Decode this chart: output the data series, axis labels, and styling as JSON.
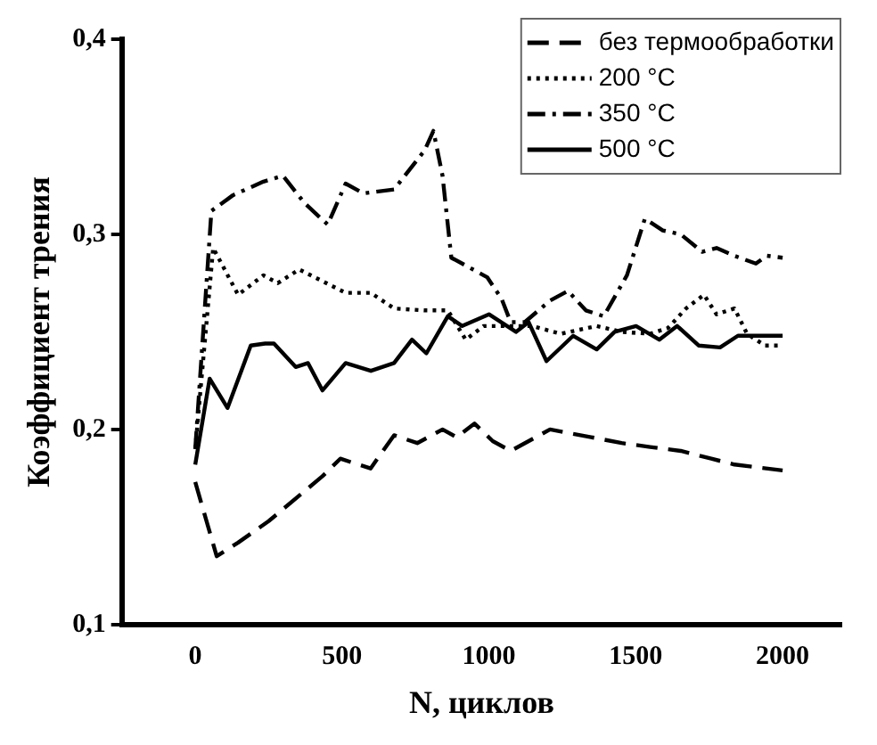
{
  "chart_data": {
    "type": "line",
    "xlabel": "N, циклов",
    "ylabel": "Коэффициент трения",
    "xlim": [
      -250,
      2200
    ],
    "xticks": [
      0,
      500,
      1000,
      1500,
      2000
    ],
    "ylim": [
      0.1,
      0.4
    ],
    "yticks": [
      {
        "value": 0.1,
        "label": "0,1"
      },
      {
        "value": 0.2,
        "label": "0,2"
      },
      {
        "value": 0.3,
        "label": "0,3"
      },
      {
        "value": 0.4,
        "label": "0,4"
      }
    ],
    "grid": false,
    "legend": "top right",
    "marker": "none",
    "series": [
      {
        "name": "без термообработки",
        "color": "#000000",
        "line_style": "dashed",
        "x": [
          0,
          73,
          146,
          250,
          433,
          494,
          597,
          677,
          756,
          842,
          890,
          951,
          1013,
          1074,
          1208,
          1348,
          1452,
          1549,
          1653,
          1757,
          1836,
          2000
        ],
        "values": [
          0.173,
          0.135,
          0.142,
          0.153,
          0.176,
          0.185,
          0.18,
          0.197,
          0.193,
          0.2,
          0.196,
          0.203,
          0.194,
          0.189,
          0.2,
          0.196,
          0.193,
          0.191,
          0.189,
          0.185,
          0.182,
          0.179
        ]
      },
      {
        "name": "200 °C",
        "color": "#000000",
        "line_style": "dotted",
        "x": [
          0,
          61,
          146,
          232,
          281,
          354,
          433,
          512,
          598,
          677,
          781,
          860,
          921,
          982,
          1061,
          1147,
          1244,
          1367,
          1452,
          1549,
          1610,
          1671,
          1732,
          1775,
          1836,
          1879,
          1940,
          2000
        ],
        "values": [
          0.19,
          0.293,
          0.269,
          0.279,
          0.275,
          0.282,
          0.276,
          0.27,
          0.27,
          0.262,
          0.261,
          0.261,
          0.246,
          0.253,
          0.253,
          0.253,
          0.249,
          0.253,
          0.25,
          0.249,
          0.252,
          0.262,
          0.269,
          0.259,
          0.262,
          0.249,
          0.243,
          0.243
        ]
      },
      {
        "name": "350 °C",
        "color": "#000000",
        "line_style": "dashdot",
        "x": [
          0,
          55,
          128,
          232,
          299,
          372,
          451,
          512,
          573,
          677,
          781,
          811,
          842,
          872,
          921,
          994,
          1043,
          1074,
          1122,
          1208,
          1269,
          1330,
          1391,
          1470,
          1531,
          1592,
          1653,
          1726,
          1775,
          1836,
          1909,
          1946,
          2000
        ],
        "values": [
          0.19,
          0.312,
          0.32,
          0.327,
          0.33,
          0.316,
          0.305,
          0.326,
          0.321,
          0.323,
          0.343,
          0.353,
          0.33,
          0.288,
          0.284,
          0.278,
          0.267,
          0.255,
          0.255,
          0.266,
          0.271,
          0.261,
          0.258,
          0.279,
          0.308,
          0.302,
          0.3,
          0.291,
          0.293,
          0.289,
          0.285,
          0.289,
          0.288
        ]
      },
      {
        "name": "500 °C",
        "color": "#000000",
        "line_style": "solid",
        "x": [
          0,
          49,
          110,
          189,
          238,
          268,
          342,
          384,
          433,
          512,
          598,
          677,
          738,
          787,
          860,
          909,
          1000,
          1092,
          1135,
          1196,
          1287,
          1367,
          1428,
          1501,
          1580,
          1641,
          1714,
          1787,
          1848,
          2000
        ],
        "values": [
          0.182,
          0.226,
          0.211,
          0.243,
          0.244,
          0.244,
          0.232,
          0.234,
          0.22,
          0.234,
          0.23,
          0.234,
          0.246,
          0.239,
          0.258,
          0.253,
          0.259,
          0.25,
          0.255,
          0.235,
          0.248,
          0.241,
          0.25,
          0.253,
          0.246,
          0.253,
          0.243,
          0.242,
          0.248,
          0.248
        ]
      }
    ]
  }
}
